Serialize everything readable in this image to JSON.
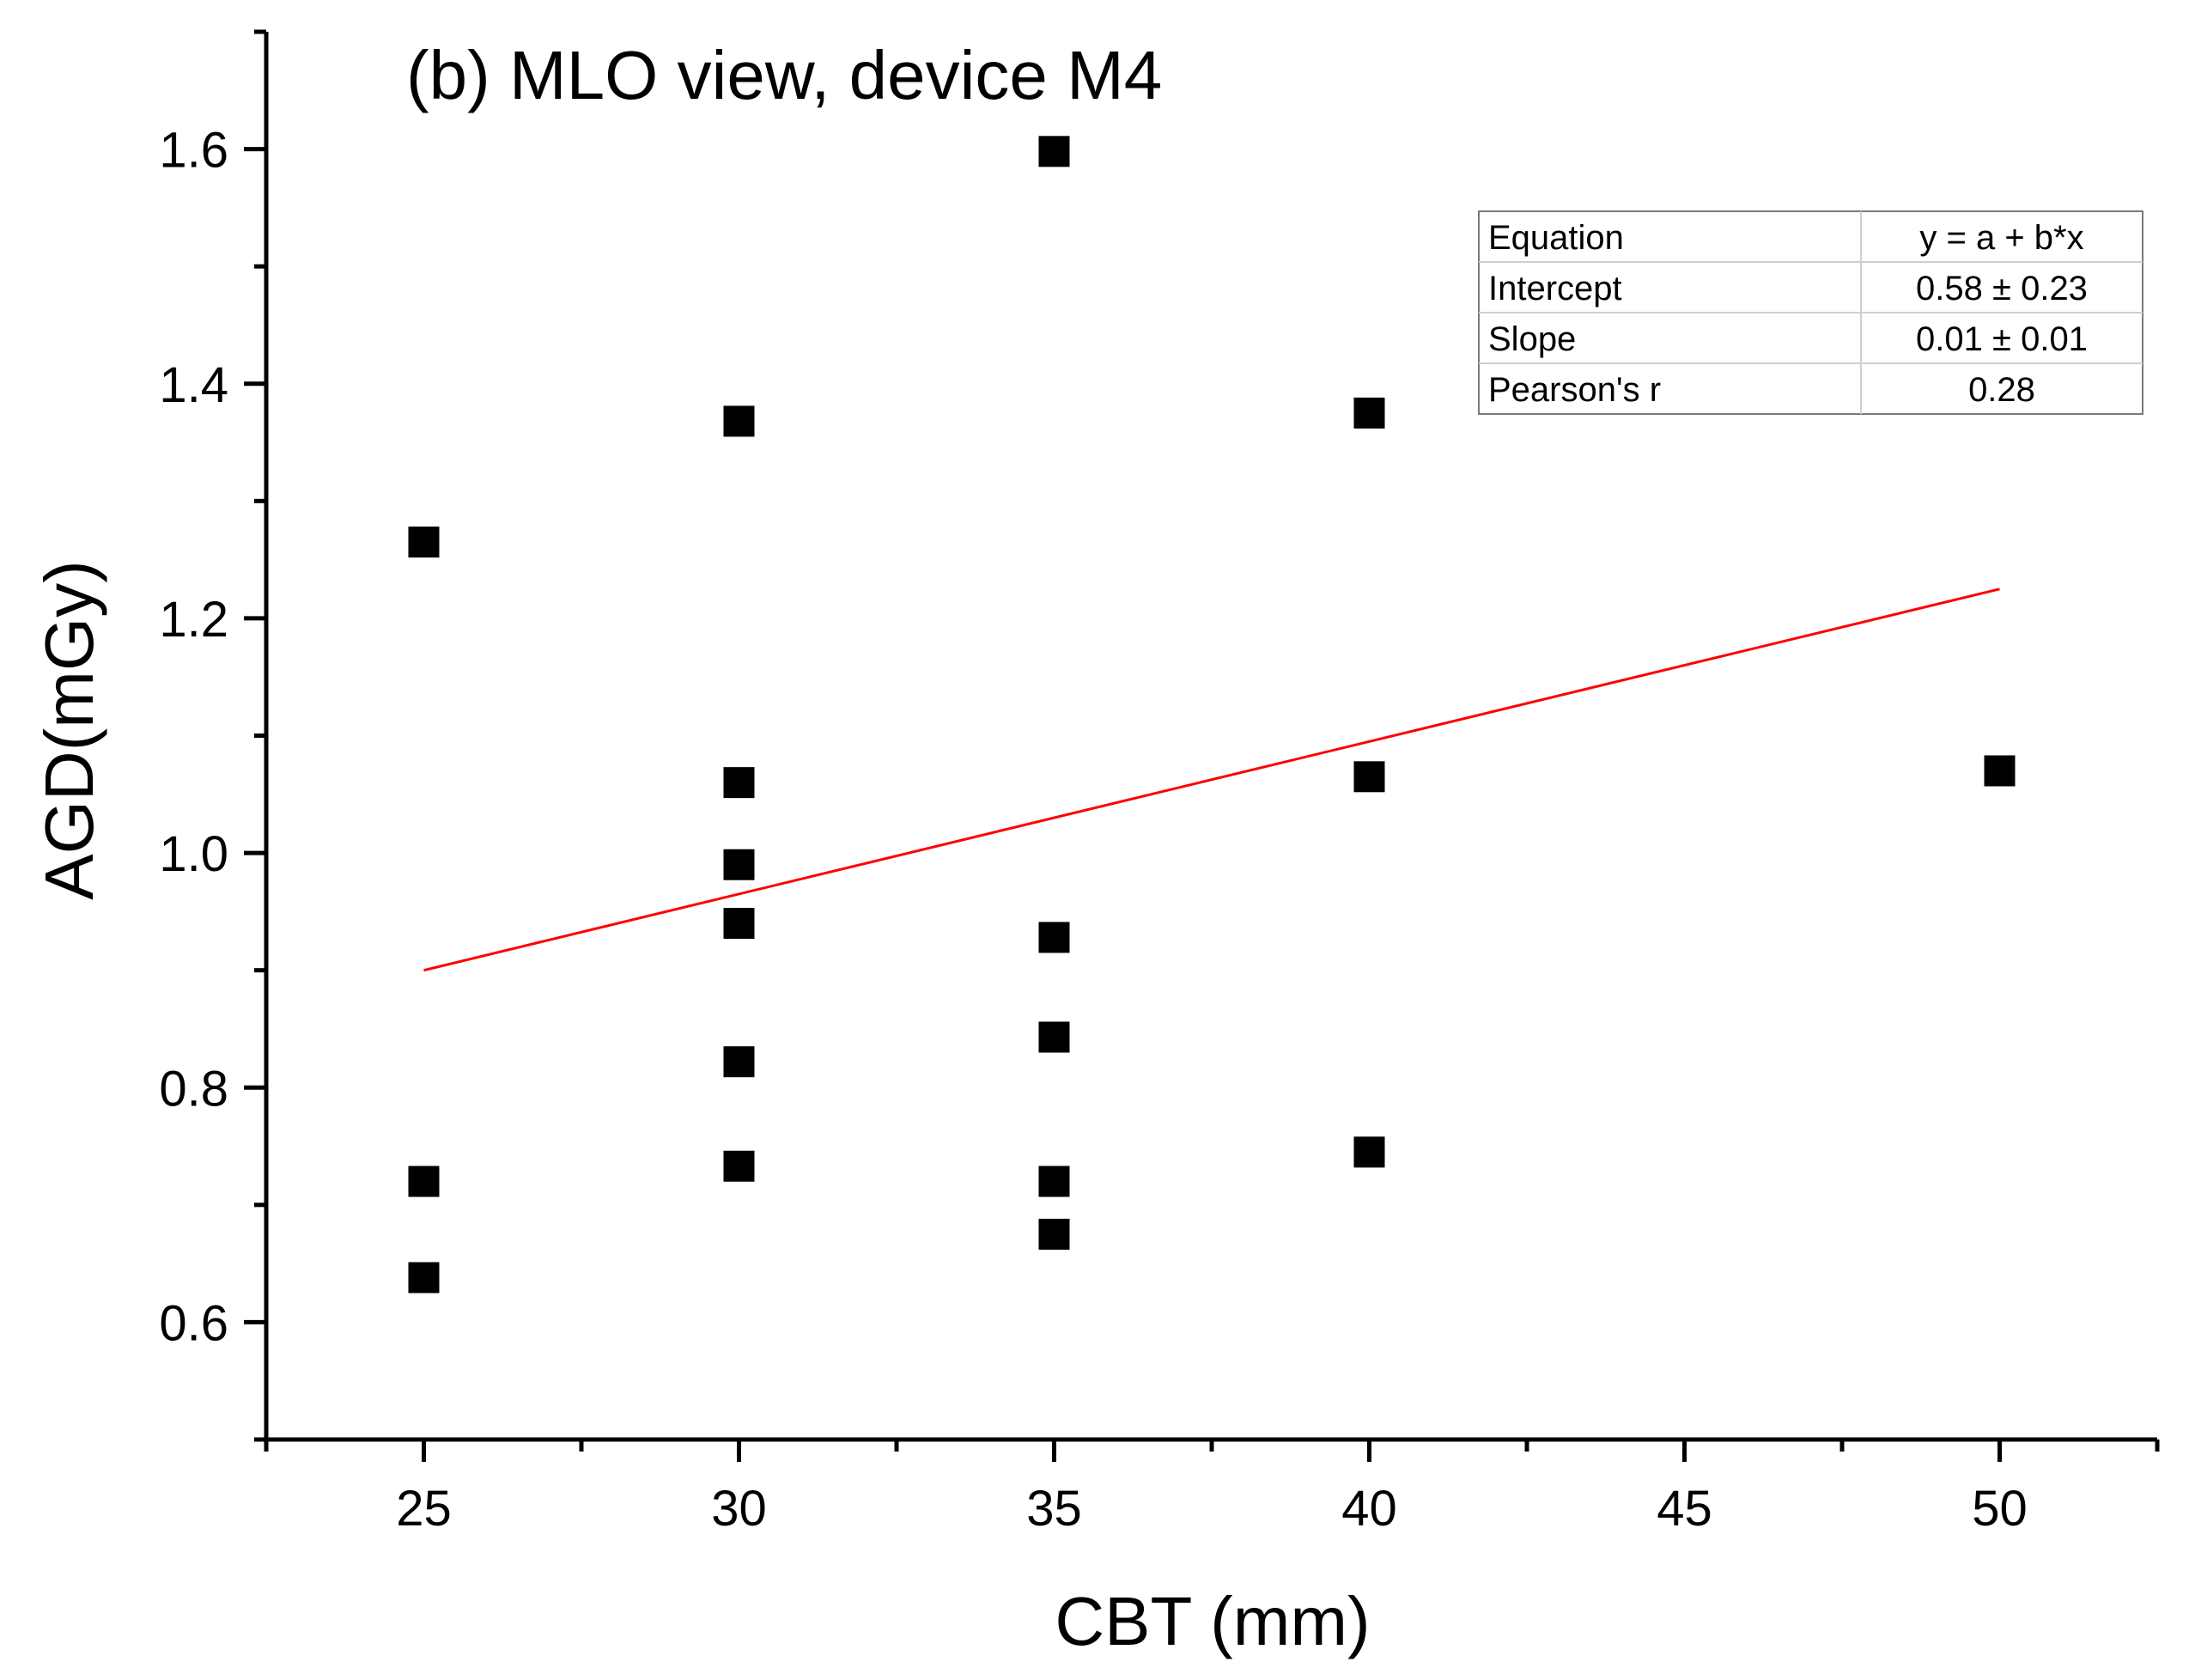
{
  "chart_data": {
    "type": "scatter",
    "title": "(b) MLO view,  device M4",
    "xlabel": "CBT (mm)",
    "ylabel": "AGD(mGy)",
    "xlim": [
      22.5,
      52.5
    ],
    "ylim": [
      0.5,
      1.7
    ],
    "xticks": [
      25,
      30,
      35,
      40,
      45,
      50
    ],
    "xtick_labels": [
      "25",
      "30",
      "35",
      "40",
      "45",
      "50"
    ],
    "yticks": [
      0.6,
      0.8,
      1.0,
      1.2,
      1.4,
      1.6
    ],
    "ytick_labels": [
      "0.6",
      "0.8",
      "1.0",
      "1.2",
      "1.4",
      "1.6"
    ],
    "grid": false,
    "series": [
      {
        "name": "AGD",
        "marker": "square",
        "color": "#000000",
        "points": [
          {
            "x": 25,
            "y": 1.265
          },
          {
            "x": 25,
            "y": 0.72
          },
          {
            "x": 25,
            "y": 0.638
          },
          {
            "x": 30,
            "y": 1.368
          },
          {
            "x": 30,
            "y": 1.06
          },
          {
            "x": 30,
            "y": 0.99
          },
          {
            "x": 30,
            "y": 0.94
          },
          {
            "x": 30,
            "y": 0.822
          },
          {
            "x": 30,
            "y": 0.733
          },
          {
            "x": 35,
            "y": 1.598
          },
          {
            "x": 35,
            "y": 0.928
          },
          {
            "x": 35,
            "y": 0.843
          },
          {
            "x": 35,
            "y": 0.72
          },
          {
            "x": 35,
            "y": 0.675
          },
          {
            "x": 40,
            "y": 1.375
          },
          {
            "x": 40,
            "y": 1.065
          },
          {
            "x": 40,
            "y": 0.745
          },
          {
            "x": 50,
            "y": 1.07
          }
        ]
      }
    ],
    "fit_line": {
      "color": "#ff0000",
      "x": [
        25,
        50
      ],
      "y": [
        0.9,
        1.225
      ]
    },
    "stats_table": {
      "rows": [
        {
          "label": "Equation",
          "value": "y = a + b*x"
        },
        {
          "label": "Intercept",
          "value": "0.58 ± 0.23"
        },
        {
          "label": "Slope",
          "value": "0.01 ± 0.01"
        },
        {
          "label": "Pearson's r",
          "value": "0.28"
        }
      ],
      "placement": "top-right"
    }
  }
}
